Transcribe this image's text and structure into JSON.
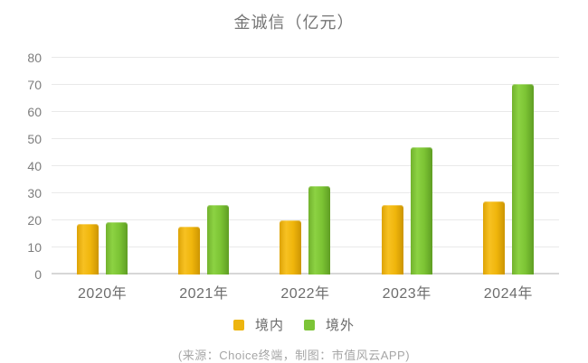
{
  "title": "金诚信（亿元）",
  "chart_data": {
    "type": "bar",
    "title": "金诚信（亿元）",
    "categories": [
      "2020年",
      "2021年",
      "2022年",
      "2023年",
      "2024年"
    ],
    "series": [
      {
        "name": "境内",
        "color": "#EDB50F",
        "values": [
          18.8,
          17.8,
          20.1,
          25.8,
          27.1
        ]
      },
      {
        "name": "境外",
        "color": "#7CC437",
        "values": [
          19.2,
          25.8,
          32.6,
          46.9,
          70.5
        ]
      }
    ],
    "xlabel": "",
    "ylabel": "",
    "ylim": [
      0,
      80
    ],
    "yticks": [
      0,
      10,
      20,
      30,
      40,
      50,
      60,
      70,
      80
    ],
    "grid": true,
    "legend_position": "bottom"
  },
  "footer": {
    "source_note": "(来源：Choice终端，制图：市值风云APP)"
  }
}
